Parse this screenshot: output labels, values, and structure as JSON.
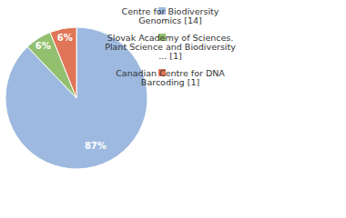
{
  "chart_data": {
    "type": "pie",
    "categories": [
      "Centre for Biodiversity Genomics [14]",
      "Slovak Academy of Sciences. Plant Science and Biodiversity ... [1]",
      "Canadian Centre for DNA Barcoding [1]"
    ],
    "values": [
      87,
      6,
      6
    ],
    "value_labels": [
      "87%",
      "6%",
      "6%"
    ],
    "colors": [
      "#9db9e0",
      "#93c06f",
      "#e07657"
    ],
    "data_labels": true,
    "legend": "right"
  }
}
